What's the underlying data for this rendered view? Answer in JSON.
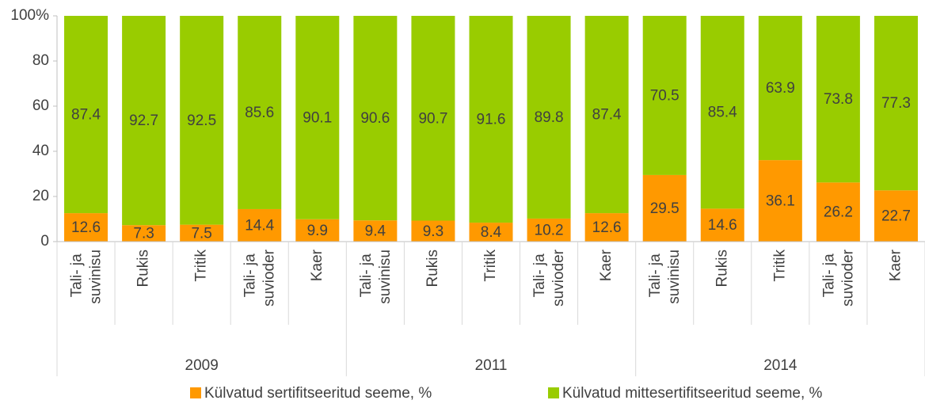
{
  "chart_data": {
    "type": "stacked_bar",
    "categories": [
      "Tali- ja suvinisu",
      "Rukis",
      "Tritik",
      "Tali- ja suvioder",
      "Kaer",
      "Tali- ja suvinisu",
      "Rukis",
      "Tritik",
      "Tali- ja suvioder",
      "Kaer",
      "Tali- ja suvinisu",
      "Rukis",
      "Tritik",
      "Tali- ja suvioder",
      "Kaer"
    ],
    "groups": [
      "2009",
      "2011",
      "2014"
    ],
    "series": [
      {
        "name": "Külvatud sertifitseeritud seeme, %",
        "color": "#ff9900",
        "values": [
          12.6,
          7.3,
          7.5,
          14.4,
          9.9,
          9.4,
          9.3,
          8.4,
          10.2,
          12.6,
          29.5,
          14.6,
          36.1,
          26.2,
          22.7
        ]
      },
      {
        "name": "Külvatud mittesertifitseeritud seeme, %",
        "color": "#99cc00",
        "values": [
          87.4,
          92.7,
          92.5,
          85.6,
          90.1,
          90.6,
          90.7,
          91.6,
          89.8,
          87.4,
          70.5,
          85.4,
          63.9,
          73.8,
          77.3
        ]
      }
    ],
    "ylim": [
      0,
      100
    ],
    "yticks": [
      0,
      20,
      40,
      60,
      80,
      {
        "value": 100,
        "label": "100%"
      }
    ],
    "grid": false,
    "legend": "bottom"
  }
}
